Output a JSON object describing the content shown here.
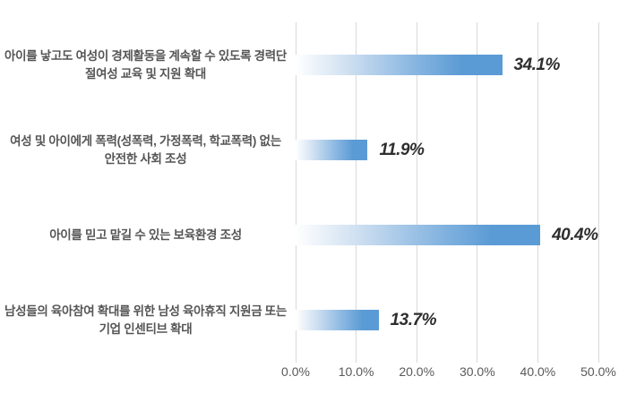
{
  "chart_data": {
    "type": "bar",
    "orientation": "horizontal",
    "title": "",
    "xlabel": "",
    "ylabel": "",
    "categories": [
      "아이를 낳고도 여성이 경제활동을 계속할 수 있도록 경력단절여성 교육 및 지원 확대",
      "여성 및 아이에게 폭력(성폭력, 가정폭력, 학교폭력) 없는 안전한 사회 조성",
      "아이를 믿고 맡길 수 있는 보육환경 조성",
      "남성들의 육아참여 확대를 위한 남성 육아휴직 지원금 또는 기업 인센티브 확대"
    ],
    "values": [
      34.1,
      11.9,
      40.4,
      13.7
    ],
    "value_labels": [
      "34.1%",
      "11.9%",
      "40.4%",
      "13.7%"
    ],
    "x_tick_labels": [
      "0.0%",
      "10.0%",
      "20.0%",
      "30.0%",
      "40.0%",
      "50.0%"
    ],
    "xlim": [
      0,
      50
    ],
    "grid": true,
    "legend": false,
    "colors": {
      "bar_solid": "#5b9bd5",
      "bar_gradient_start": "#ffffff",
      "gridline": "#d9d9d9",
      "category_text": "#555555",
      "value_text": "#2e2e2e",
      "axis_text": "#595959",
      "background": "#ffffff"
    }
  }
}
